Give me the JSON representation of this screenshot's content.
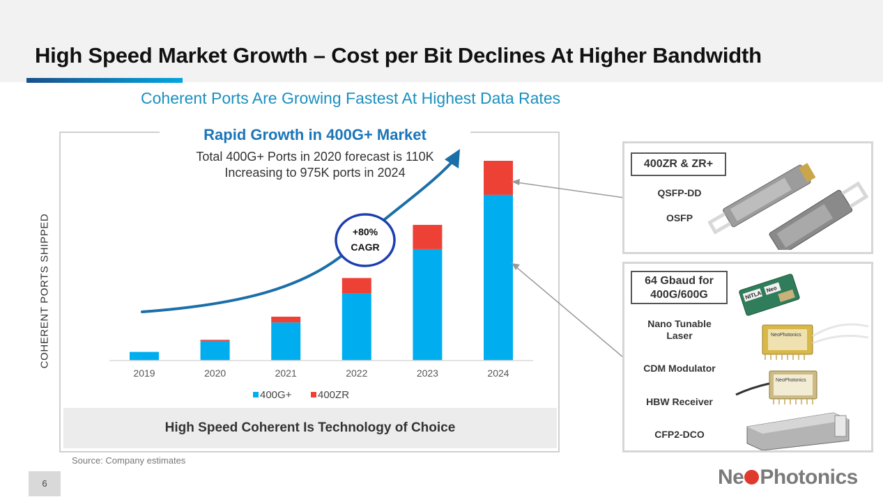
{
  "slide": {
    "title": "High Speed Market Growth – Cost per Bit Declines At Higher Bandwidth",
    "subtitle": "Coherent Ports Are Growing Fastest At Highest Data Rates",
    "page_number": "6",
    "source": "Source: Company estimates",
    "logo": {
      "pre": "Ne",
      "post": "Photonics"
    },
    "colors": {
      "accent_blue": "#00aeef",
      "accent_red": "#ee4136",
      "title_blue": "#1a75b8",
      "subtitle_blue": "#1a8fbf",
      "arrow_teal": "#1b6fa8"
    }
  },
  "chart": {
    "heading": "Rapid Growth in 400G+ Market",
    "note": "Total 400G+ Ports in 2020 forecast is 110K Increasing to 975K ports in 2024",
    "cagr_value": "+80%",
    "cagr_label": "CAGR",
    "footer": "High Speed Coherent Is Technology of Choice"
  },
  "chart_data": {
    "type": "bar",
    "stacked": true,
    "title": "Rapid Growth in 400G+ Market",
    "xlabel": "",
    "ylabel": "COHERENT PORTS SHIPPED",
    "categories": [
      "2019",
      "2020",
      "2021",
      "2022",
      "2023",
      "2024"
    ],
    "series": [
      {
        "name": "400G+",
        "color": "#00aeef",
        "values": [
          15,
          34,
          66,
          116,
          193,
          287
        ]
      },
      {
        "name": "400ZR",
        "color": "#ee4136",
        "values": [
          0,
          2,
          10,
          27,
          42,
          59
        ]
      }
    ],
    "ylim": [
      0,
      360
    ],
    "grid": false,
    "y_ticks_shown": false,
    "legend": "bottom-center"
  },
  "panels": {
    "top": {
      "tag": "400ZR & ZR+",
      "labels": [
        "QSFP-DD",
        "OSFP"
      ]
    },
    "bottom": {
      "tag_line1": "64 Gbaud for",
      "tag_line2": "400G/600G",
      "labels": [
        "Nano Tunable Laser",
        "CDM Modulator",
        "HBW Receiver",
        "CFP2-DCO"
      ]
    }
  },
  "product_text": {
    "laser_brand_1": "NITLA",
    "laser_brand_2": "Neo",
    "module_brand": "NeoPhotonics"
  }
}
